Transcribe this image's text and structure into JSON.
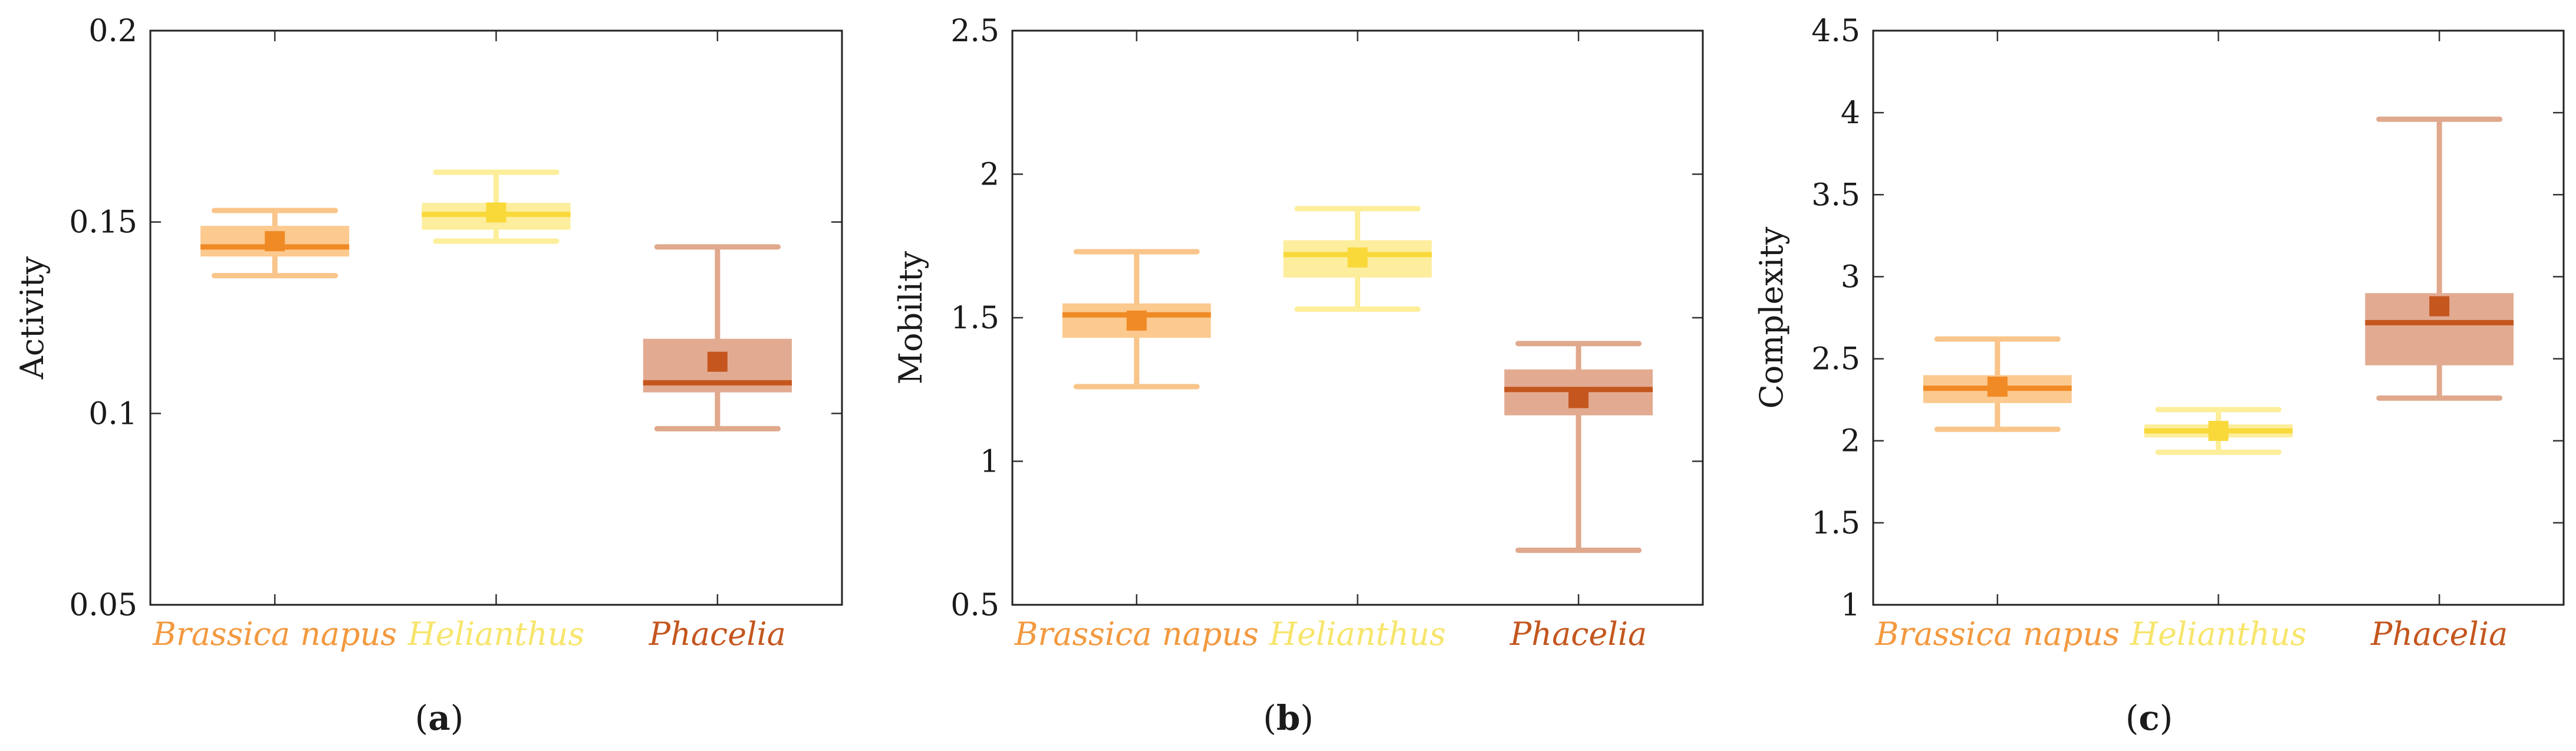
{
  "chart_data": [
    {
      "type": "box",
      "panel_label": "a",
      "ylabel": "Activity",
      "ylim": [
        0.05,
        0.2
      ],
      "yticks": [
        "0.05",
        "0.1",
        "0.15",
        "0.2"
      ],
      "ytick_values": [
        0.05,
        0.1,
        0.15,
        0.2
      ],
      "categories": [
        "Brassica napus",
        "Helianthus",
        "Phacelia"
      ],
      "boxes": [
        {
          "name": "Brassica napus",
          "whisker_low": 0.136,
          "q1": 0.141,
          "median": 0.1435,
          "q3": 0.149,
          "whisker_high": 0.153,
          "mean": 0.145
        },
        {
          "name": "Helianthus",
          "whisker_low": 0.145,
          "q1": 0.148,
          "median": 0.152,
          "q3": 0.155,
          "whisker_high": 0.163,
          "mean": 0.1525
        },
        {
          "name": "Phacelia",
          "whisker_low": 0.096,
          "q1": 0.1055,
          "median": 0.108,
          "q3": 0.1195,
          "whisker_high": 0.1435,
          "mean": 0.1135
        }
      ]
    },
    {
      "type": "box",
      "panel_label": "b",
      "ylabel": "Mobility",
      "ylim": [
        0.5,
        2.5
      ],
      "yticks": [
        "0.5",
        "1",
        "1.5",
        "2",
        "2.5"
      ],
      "ytick_values": [
        0.5,
        1,
        1.5,
        2,
        2.5
      ],
      "categories": [
        "Brassica napus",
        "Helianthus",
        "Phacelia"
      ],
      "boxes": [
        {
          "name": "Brassica napus",
          "whisker_low": 1.26,
          "q1": 1.43,
          "median": 1.51,
          "q3": 1.55,
          "whisker_high": 1.73,
          "mean": 1.49
        },
        {
          "name": "Helianthus",
          "whisker_low": 1.53,
          "q1": 1.64,
          "median": 1.72,
          "q3": 1.77,
          "whisker_high": 1.88,
          "mean": 1.71
        },
        {
          "name": "Phacelia",
          "whisker_low": 0.69,
          "q1": 1.16,
          "median": 1.25,
          "q3": 1.32,
          "whisker_high": 1.41,
          "mean": 1.22
        }
      ]
    },
    {
      "type": "box",
      "panel_label": "c",
      "ylabel": "Complexity",
      "ylim": [
        1,
        4.5
      ],
      "yticks": [
        "1",
        "1.5",
        "2",
        "2.5",
        "3",
        "3.5",
        "4",
        "4.5"
      ],
      "ytick_values": [
        1,
        1.5,
        2,
        2.5,
        3,
        3.5,
        4,
        4.5
      ],
      "categories": [
        "Brassica napus",
        "Helianthus",
        "Phacelia"
      ],
      "boxes": [
        {
          "name": "Brassica napus",
          "whisker_low": 2.07,
          "q1": 2.23,
          "median": 2.32,
          "q3": 2.4,
          "whisker_high": 2.62,
          "mean": 2.33
        },
        {
          "name": "Helianthus",
          "whisker_low": 1.93,
          "q1": 2.02,
          "median": 2.06,
          "q3": 2.1,
          "whisker_high": 2.19,
          "mean": 2.06
        },
        {
          "name": "Phacelia",
          "whisker_low": 2.26,
          "q1": 2.46,
          "median": 2.72,
          "q3": 2.9,
          "whisker_high": 3.96,
          "mean": 2.82
        }
      ]
    }
  ],
  "series_colors": {
    "Brassica napus": {
      "light": "#f9c58a",
      "fill": "#fcc98f",
      "dark": "#f08a24",
      "label": "#f3993f"
    },
    "Helianthus": {
      "light": "#fdee9a",
      "fill": "#fdee9e",
      "dark": "#f9d93a",
      "label": "#f7e56b"
    },
    "Phacelia": {
      "light": "#e0a88c",
      "fill": "#e2ab91",
      "dark": "#c4561e",
      "label": "#c4561e"
    }
  }
}
